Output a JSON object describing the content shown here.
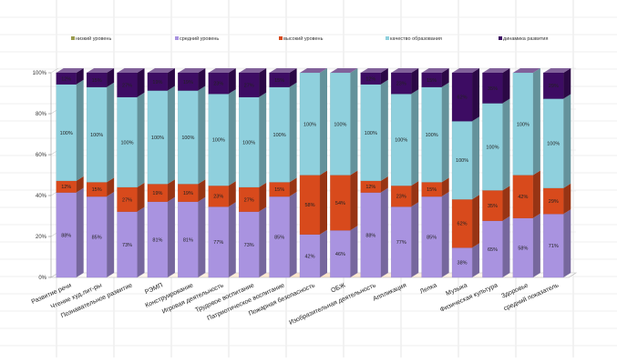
{
  "chart_data": {
    "type": "bar",
    "stacked": "percent",
    "legend_position": "top",
    "grid": true,
    "ylim": [
      0,
      100
    ],
    "y_ticks": [
      "0%",
      "20%",
      "40%",
      "60%",
      "80%",
      "100%"
    ],
    "categories": [
      "Развитие речи",
      "Чтение худ.лит-ры",
      "Познавательное развитие",
      "РЭМП",
      "Конструирование",
      "Игровая деятельность",
      "Трудовое воспитание",
      "Патриотическое воспитание",
      "Пожарная безопасность",
      "ОБЖ",
      "Изобразительная деятельность",
      "Аппликация",
      "Лепка",
      "Музыка",
      "Физическая культура",
      "Здоровье",
      "средний показатель"
    ],
    "series": [
      {
        "name": "низкий уровень",
        "color": "#9b9c4e",
        "values": [
          0,
          0,
          0,
          0,
          0,
          0,
          0,
          0,
          0,
          0,
          0,
          0,
          0,
          0,
          0,
          0,
          0
        ]
      },
      {
        "name": "средний уровень",
        "color": "#a993e0",
        "values": [
          88,
          85,
          73,
          81,
          81,
          77,
          73,
          85,
          42,
          46,
          88,
          77,
          85,
          38,
          65,
          58,
          71
        ]
      },
      {
        "name": "высокий уровень",
        "color": "#d84a1c",
        "values": [
          12,
          15,
          27,
          19,
          19,
          23,
          27,
          15,
          58,
          54,
          12,
          23,
          15,
          62,
          35,
          42,
          29
        ]
      },
      {
        "name": "качество образования",
        "color": "#8fd0dd",
        "values": [
          100,
          100,
          100,
          100,
          100,
          100,
          100,
          100,
          100,
          100,
          100,
          100,
          100,
          100,
          100,
          100,
          100
        ]
      },
      {
        "name": "динамика развития",
        "color": "#3d0c63",
        "values": [
          12,
          15,
          27,
          19,
          19,
          23,
          27,
          15,
          0,
          0,
          12,
          23,
          15,
          62,
          35,
          0,
          29
        ]
      }
    ]
  }
}
